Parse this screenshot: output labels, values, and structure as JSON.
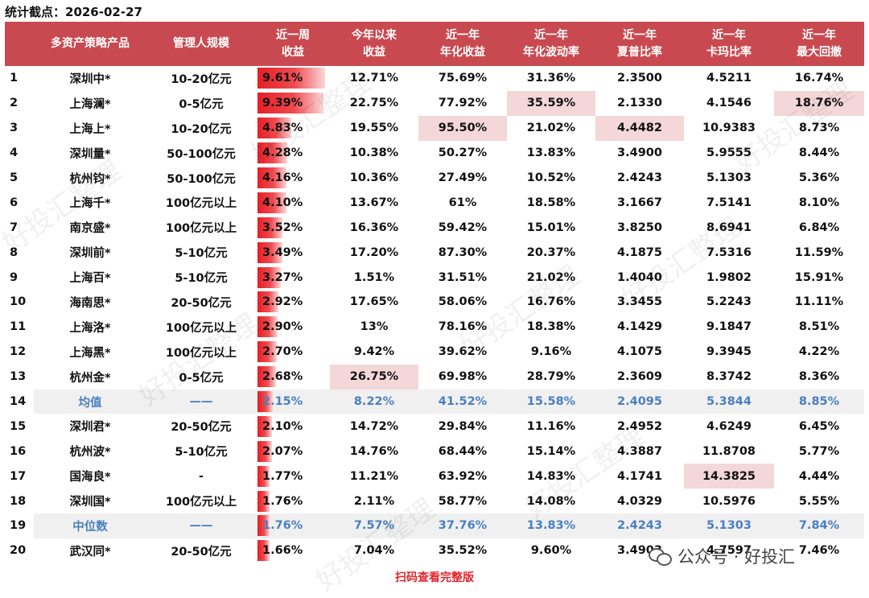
{
  "date_label": "统计截点：2026-02-27",
  "headers": [
    [
      "",
      ""
    ],
    [
      "多资产策略产品",
      ""
    ],
    [
      "管理人规模",
      ""
    ],
    [
      "近一周",
      "收益"
    ],
    [
      "今年以来",
      "收益"
    ],
    [
      "近一年",
      "年化收益"
    ],
    [
      "近一年",
      "年化波动率"
    ],
    [
      "近一年",
      "夏普比率"
    ],
    [
      "近一年",
      "卡玛比率"
    ],
    [
      "近一年",
      "最大回撤"
    ]
  ],
  "rows": [
    {
      "idx": "1",
      "name": "深圳中*",
      "scale": "10-20亿元",
      "week": "9.61%",
      "week_pct": 9.61,
      "ytd": "12.71%",
      "ann": "75.69%",
      "vol": "31.36%",
      "sharpe": "2.3500",
      "calmar": "4.5211",
      "mdd": "16.74%"
    },
    {
      "idx": "2",
      "name": "上海澜*",
      "scale": "0-5亿元",
      "week": "9.39%",
      "week_pct": 9.39,
      "ytd": "22.75%",
      "ann": "77.92%",
      "vol": "35.59%",
      "sharpe": "2.1330",
      "calmar": "4.1546",
      "mdd": "18.76%"
    },
    {
      "idx": "3",
      "name": "上海上*",
      "scale": "10-20亿元",
      "week": "4.83%",
      "week_pct": 4.83,
      "ytd": "19.55%",
      "ann": "95.50%",
      "vol": "21.02%",
      "sharpe": "4.4482",
      "calmar": "10.9383",
      "mdd": "8.73%"
    },
    {
      "idx": "4",
      "name": "深圳量*",
      "scale": "50-100亿元",
      "week": "4.28%",
      "week_pct": 4.28,
      "ytd": "10.38%",
      "ann": "50.27%",
      "vol": "13.83%",
      "sharpe": "3.4900",
      "calmar": "5.9555",
      "mdd": "8.44%"
    },
    {
      "idx": "5",
      "name": "杭州钧*",
      "scale": "50-100亿元",
      "week": "4.16%",
      "week_pct": 4.16,
      "ytd": "10.36%",
      "ann": "27.49%",
      "vol": "10.52%",
      "sharpe": "2.4243",
      "calmar": "5.1303",
      "mdd": "5.36%"
    },
    {
      "idx": "6",
      "name": "上海千*",
      "scale": "100亿元以上",
      "week": "4.10%",
      "week_pct": 4.1,
      "ytd": "13.67%",
      "ann": "61%",
      "vol": "18.58%",
      "sharpe": "3.1667",
      "calmar": "7.5141",
      "mdd": "8.10%"
    },
    {
      "idx": "7",
      "name": "南京盛*",
      "scale": "100亿元以上",
      "week": "3.52%",
      "week_pct": 3.52,
      "ytd": "16.36%",
      "ann": "59.42%",
      "vol": "15.01%",
      "sharpe": "3.8250",
      "calmar": "8.6941",
      "mdd": "6.84%"
    },
    {
      "idx": "8",
      "name": "深圳前*",
      "scale": "5-10亿元",
      "week": "3.49%",
      "week_pct": 3.49,
      "ytd": "17.20%",
      "ann": "87.30%",
      "vol": "20.37%",
      "sharpe": "4.1875",
      "calmar": "7.5316",
      "mdd": "11.59%"
    },
    {
      "idx": "9",
      "name": "上海百*",
      "scale": "5-10亿元",
      "week": "3.27%",
      "week_pct": 3.27,
      "ytd": "1.51%",
      "ann": "31.51%",
      "vol": "21.02%",
      "sharpe": "1.4040",
      "calmar": "1.9802",
      "mdd": "15.91%"
    },
    {
      "idx": "10",
      "name": "海南思*",
      "scale": "20-50亿元",
      "week": "2.92%",
      "week_pct": 2.92,
      "ytd": "17.65%",
      "ann": "58.06%",
      "vol": "16.76%",
      "sharpe": "3.3455",
      "calmar": "5.2243",
      "mdd": "11.11%"
    },
    {
      "idx": "11",
      "name": "上海洛*",
      "scale": "100亿元以上",
      "week": "2.90%",
      "week_pct": 2.9,
      "ytd": "13%",
      "ann": "78.16%",
      "vol": "18.38%",
      "sharpe": "4.1429",
      "calmar": "9.1847",
      "mdd": "8.51%"
    },
    {
      "idx": "12",
      "name": "上海黑*",
      "scale": "100亿元以上",
      "week": "2.70%",
      "week_pct": 2.7,
      "ytd": "9.42%",
      "ann": "39.62%",
      "vol": "9.16%",
      "sharpe": "4.1075",
      "calmar": "9.3945",
      "mdd": "4.22%"
    },
    {
      "idx": "13",
      "name": "杭州金*",
      "scale": "0-5亿元",
      "week": "2.68%",
      "week_pct": 2.68,
      "ytd": "26.75%",
      "ann": "69.98%",
      "vol": "28.79%",
      "sharpe": "2.3609",
      "calmar": "8.3742",
      "mdd": "8.36%"
    },
    {
      "idx": "14",
      "name": "均值",
      "scale": "——",
      "week": "2.15%",
      "week_pct": 2.15,
      "ytd": "8.22%",
      "ann": "41.52%",
      "vol": "15.58%",
      "sharpe": "2.4095",
      "calmar": "5.3844",
      "mdd": "8.85%",
      "stat": true
    },
    {
      "idx": "15",
      "name": "深圳君*",
      "scale": "20-50亿元",
      "week": "2.10%",
      "week_pct": 2.1,
      "ytd": "14.72%",
      "ann": "29.84%",
      "vol": "11.16%",
      "sharpe": "2.4952",
      "calmar": "4.6249",
      "mdd": "6.45%"
    },
    {
      "idx": "16",
      "name": "杭州波*",
      "scale": "5-10亿元",
      "week": "2.07%",
      "week_pct": 2.07,
      "ytd": "14.76%",
      "ann": "68.44%",
      "vol": "15.14%",
      "sharpe": "4.3887",
      "calmar": "11.8708",
      "mdd": "5.77%"
    },
    {
      "idx": "17",
      "name": "国海良*",
      "scale": "-",
      "week": "1.77%",
      "week_pct": 1.77,
      "ytd": "11.21%",
      "ann": "63.92%",
      "vol": "14.83%",
      "sharpe": "4.1741",
      "calmar": "14.3825",
      "mdd": "4.44%"
    },
    {
      "idx": "18",
      "name": "深圳国*",
      "scale": "100亿元以上",
      "week": "1.76%",
      "week_pct": 1.76,
      "ytd": "2.11%",
      "ann": "58.77%",
      "vol": "14.08%",
      "sharpe": "4.0329",
      "calmar": "10.5976",
      "mdd": "5.55%"
    },
    {
      "idx": "19",
      "name": "中位数",
      "scale": "——",
      "week": "1.76%",
      "week_pct": 1.76,
      "ytd": "7.57%",
      "ann": "37.76%",
      "vol": "13.83%",
      "sharpe": "2.4243",
      "calmar": "5.1303",
      "mdd": "7.84%",
      "stat": true
    },
    {
      "idx": "20",
      "name": "武汉同*",
      "scale": "20-50亿元",
      "week": "1.66%",
      "week_pct": 1.66,
      "ytd": "7.04%",
      "ann": "35.52%",
      "vol": "9.60%",
      "sharpe": "3.4903",
      "calmar": "4.7597",
      "mdd": "7.46%"
    }
  ],
  "highlights": {
    "ytd": "13",
    "ann": "3",
    "vol": "2",
    "sharpe": "3",
    "calmar": "17",
    "mdd": "2"
  },
  "bar_color": "#e61e25",
  "header_color": "#c84a50",
  "stat_text_color": "#4a7fbf",
  "footer_text": "扫码查看完整版",
  "brand_text": "公众号 · 好投汇",
  "watermark_text": "好投汇整理"
}
